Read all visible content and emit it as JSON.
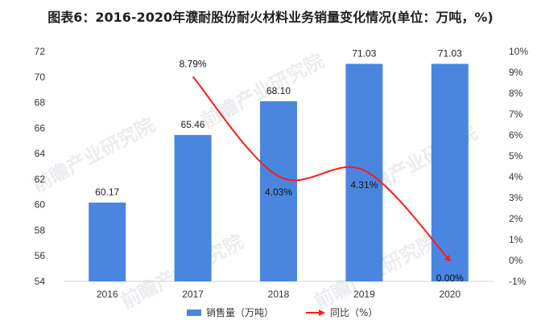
{
  "chart_data": {
    "type": "bar",
    "title": "图表6：2016-2020年濮耐股份耐火材料业务销量变化情况(单位：万吨，%)",
    "categories": [
      "2016",
      "2017",
      "2018",
      "2019",
      "2020"
    ],
    "series": [
      {
        "name": "销售量（万吨）",
        "type": "bar",
        "axis": "left",
        "values": [
          60.17,
          65.46,
          68.1,
          71.03,
          71.03
        ],
        "labels": [
          "60.17",
          "65.46",
          "68.10",
          "71.03",
          "71.03"
        ],
        "color": "#4a86e0"
      },
      {
        "name": "同比（%）",
        "type": "line",
        "axis": "right",
        "values": [
          null,
          8.79,
          4.03,
          4.31,
          0.0
        ],
        "labels": [
          "",
          "8.79%",
          "4.03%",
          "4.31%",
          "0.00%"
        ],
        "color": "#ff1a1a"
      }
    ],
    "y_left": {
      "min": 54,
      "max": 72,
      "step": 2,
      "ticks": [
        "54",
        "56",
        "58",
        "60",
        "62",
        "64",
        "66",
        "68",
        "70",
        "72"
      ]
    },
    "y_right": {
      "min": -1,
      "max": 10,
      "step": 1,
      "ticks": [
        "-1%",
        "0%",
        "1%",
        "2%",
        "3%",
        "4%",
        "5%",
        "6%",
        "7%",
        "8%",
        "9%",
        "10%"
      ]
    },
    "grid": false,
    "legend_position": "bottom"
  },
  "watermark": "前瞻产业研究院"
}
